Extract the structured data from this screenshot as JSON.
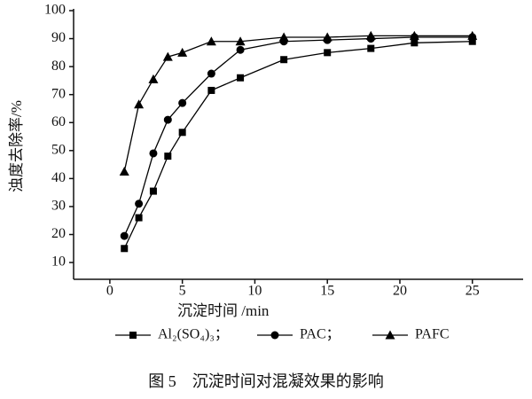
{
  "chart_data": {
    "type": "line",
    "xlabel": "沉淀时间 /min",
    "ylabel": "浊度去除率/%",
    "caption": "图 5　沉淀时间对混凝效果的影响",
    "x": [
      1,
      2,
      3,
      4,
      5,
      7,
      9,
      12,
      15,
      18,
      21,
      25
    ],
    "series": [
      {
        "name": "Al₂(SO₄)₃；",
        "color": "#000000",
        "marker": "square",
        "values": [
          15,
          26,
          35.5,
          48,
          56.5,
          71.5,
          76,
          82.5,
          85,
          86.5,
          88.5,
          89
        ]
      },
      {
        "name": "PAC；",
        "color": "#000000",
        "marker": "circle",
        "values": [
          19.5,
          31,
          49,
          61,
          67,
          77.5,
          86,
          89,
          89.5,
          90,
          90.5,
          90.5
        ]
      },
      {
        "name": "PAFC",
        "color": "#000000",
        "marker": "triangle",
        "values": [
          42.5,
          66.5,
          75.5,
          83.5,
          85,
          89,
          89,
          90.5,
          90.5,
          91,
          91,
          91
        ]
      }
    ],
    "xlim": [
      -2.5,
      28.5
    ],
    "ylim": [
      4,
      100
    ],
    "xticks": [
      0,
      5,
      10,
      15,
      20,
      25
    ],
    "yticks": [
      10,
      20,
      30,
      40,
      50,
      60,
      70,
      80,
      90,
      100
    ]
  }
}
